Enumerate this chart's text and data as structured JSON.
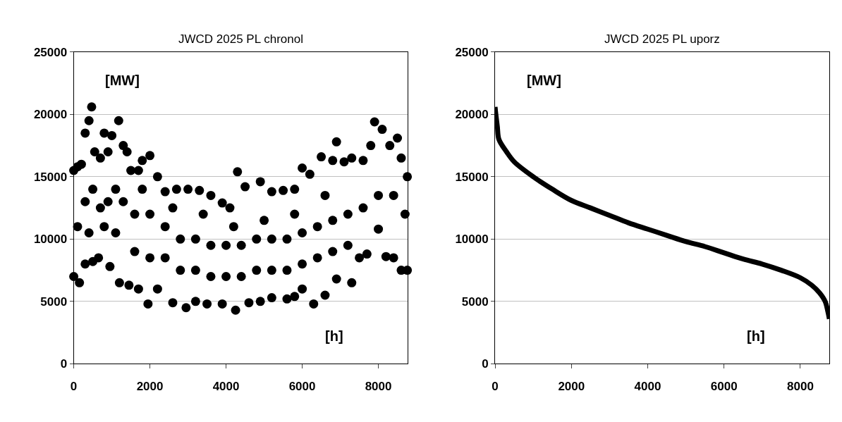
{
  "chart_data": [
    {
      "type": "scatter",
      "title": "JWCD 2025 PL chronol",
      "xlabel": "[h]",
      "ylabel": "[MW]",
      "marker": "circle",
      "grid": "y",
      "xlim": [
        0,
        8760
      ],
      "ylim": [
        0,
        25000
      ],
      "xticks": [
        0,
        2000,
        4000,
        6000,
        8000
      ],
      "yticks": [
        0,
        5000,
        10000,
        15000,
        20000,
        25000
      ],
      "series": [
        {
          "color": "#000000",
          "x": [
            0,
            100,
            200,
            300,
            400,
            470,
            550,
            700,
            800,
            900,
            1000,
            1180,
            1300,
            1400,
            1500,
            1700,
            1800,
            2000,
            2200,
            2400,
            2700,
            3000,
            3300,
            3600,
            3900,
            4100,
            4300,
            4500,
            4900,
            5200,
            5500,
            5800,
            6000,
            6200,
            6500,
            6800,
            6900,
            7100,
            7300,
            7600,
            7800,
            7900,
            8100,
            8300,
            8500,
            8600,
            8760,
            0,
            150,
            300,
            400,
            500,
            650,
            800,
            950,
            1100,
            1200,
            1450,
            1700,
            1950,
            2200,
            2600,
            2950,
            3200,
            3500,
            3900,
            4250,
            4600,
            4900,
            5200,
            5600,
            5800,
            6000,
            6300,
            6600,
            6900,
            7300,
            7500,
            7700,
            8000,
            8200,
            8400,
            8600,
            8760,
            100,
            300,
            500,
            700,
            900,
            1100,
            1300,
            1600,
            2000,
            2400,
            2800,
            3200,
            3600,
            4000,
            4400,
            4800,
            5200,
            5600,
            6000,
            6400,
            6800,
            7200,
            7600,
            8000,
            8400,
            8700,
            1600,
            2000,
            2400,
            2800,
            3200,
            3600,
            4000,
            4400,
            4800,
            5200,
            5600,
            6000,
            6400,
            6800,
            7200,
            1800,
            2600,
            3400,
            4200,
            5000,
            5800,
            6600
          ],
          "values": [
            15500,
            15800,
            16000,
            18500,
            19500,
            20600,
            17000,
            16500,
            18500,
            17000,
            18300,
            19500,
            17500,
            17000,
            15500,
            15500,
            16300,
            16700,
            15000,
            13800,
            14000,
            14000,
            13900,
            13500,
            12900,
            12500,
            15400,
            14200,
            14600,
            13800,
            13900,
            14000,
            15700,
            15200,
            16600,
            16300,
            17800,
            16200,
            16500,
            16300,
            17500,
            19400,
            18800,
            17500,
            18100,
            16500,
            15000,
            7000,
            6500,
            8000,
            10500,
            8200,
            8500,
            11000,
            7800,
            10500,
            6500,
            6300,
            6000,
            4800,
            6000,
            4900,
            4500,
            5000,
            4800,
            4800,
            4300,
            4900,
            5000,
            5300,
            5200,
            5400,
            6000,
            4800,
            5500,
            6800,
            6500,
            8500,
            8800,
            10800,
            8600,
            8500,
            7500,
            7500,
            11000,
            13000,
            14000,
            12500,
            13000,
            14000,
            13000,
            12000,
            12000,
            11000,
            10000,
            10000,
            9500,
            9500,
            9500,
            10000,
            10000,
            10000,
            10500,
            11000,
            11500,
            12000,
            12500,
            13500,
            13500,
            12000,
            9000,
            8500,
            8500,
            7500,
            7500,
            7000,
            7000,
            7000,
            7500,
            7500,
            7500,
            8000,
            8500,
            9000,
            9500,
            14000,
            12500,
            12000,
            11000,
            11500,
            12000,
            13500
          ]
        }
      ]
    },
    {
      "type": "line",
      "title": "JWCD 2025 PL uporz",
      "xlabel": "[h]",
      "ylabel": "[MW]",
      "grid": "y",
      "xlim": [
        0,
        8760
      ],
      "ylim": [
        0,
        25000
      ],
      "xticks": [
        0,
        2000,
        4000,
        6000,
        8000
      ],
      "yticks": [
        0,
        5000,
        10000,
        15000,
        20000,
        25000
      ],
      "series": [
        {
          "color": "#000000",
          "x": [
            0,
            20,
            60,
            100,
            300,
            500,
            1000,
            1500,
            2000,
            2500,
            3000,
            3500,
            4000,
            4500,
            5000,
            5500,
            6000,
            6500,
            7000,
            7500,
            8000,
            8300,
            8500,
            8650,
            8720,
            8760
          ],
          "values": [
            20600,
            20000,
            19000,
            18000,
            17000,
            16200,
            15000,
            14000,
            13100,
            12500,
            11900,
            11300,
            10800,
            10300,
            9800,
            9400,
            8900,
            8400,
            8000,
            7500,
            6900,
            6300,
            5700,
            5000,
            4200,
            3600
          ]
        }
      ]
    }
  ]
}
